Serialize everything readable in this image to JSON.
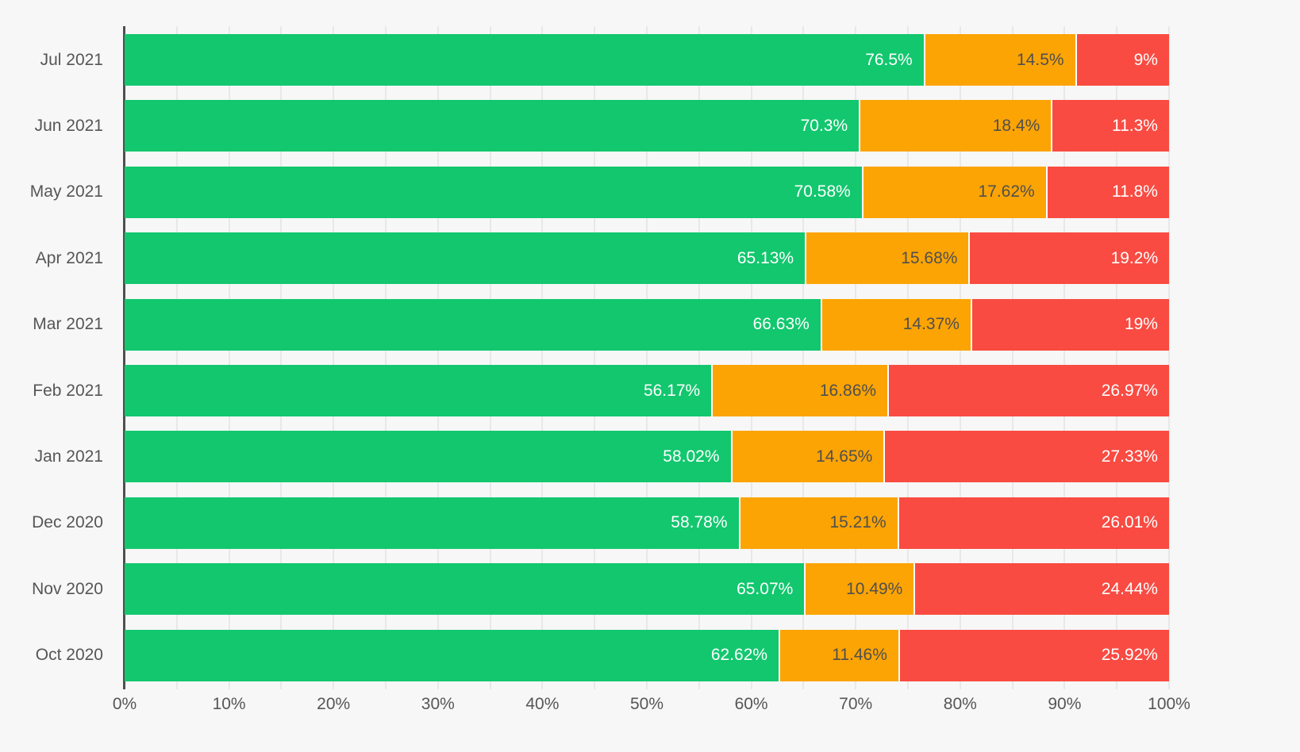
{
  "chart_data": {
    "type": "bar",
    "orientation": "horizontal",
    "stacked": true,
    "stack_total": 100,
    "title": "",
    "xlabel": "",
    "ylabel": "",
    "legend": false,
    "grid": true,
    "minor_grid_step_pct": 5,
    "xlim": [
      0,
      100
    ],
    "categories": [
      "Jul 2021",
      "Jun 2021",
      "May 2021",
      "Apr 2021",
      "Mar 2021",
      "Feb 2021",
      "Jan 2021",
      "Dec 2020",
      "Nov 2020",
      "Oct 2020"
    ],
    "series": [
      {
        "name": "green",
        "color": "#12c76e",
        "label_color": "#ffffff",
        "values": [
          76.5,
          70.3,
          70.58,
          65.13,
          66.63,
          56.17,
          58.02,
          58.78,
          65.07,
          62.62
        ],
        "labels": [
          "76.5%",
          "70.3%",
          "70.58%",
          "65.13%",
          "66.63%",
          "56.17%",
          "58.02%",
          "58.78%",
          "65.07%",
          "62.62%"
        ]
      },
      {
        "name": "orange",
        "color": "#fca404",
        "label_color": "#4f4f4f",
        "values": [
          14.5,
          18.4,
          17.62,
          15.68,
          14.37,
          16.86,
          14.65,
          15.21,
          10.49,
          11.46
        ],
        "labels": [
          "14.5%",
          "18.4%",
          "17.62%",
          "15.68%",
          "14.37%",
          "16.86%",
          "14.65%",
          "15.21%",
          "10.49%",
          "11.46%"
        ]
      },
      {
        "name": "red",
        "color": "#f94b42",
        "label_color": "#ffffff",
        "values": [
          9,
          11.3,
          11.8,
          19.2,
          19,
          26.97,
          27.33,
          26.01,
          24.44,
          25.92
        ],
        "labels": [
          "9%",
          "11.3%",
          "11.8%",
          "19.2%",
          "19%",
          "26.97%",
          "27.33%",
          "26.01%",
          "24.44%",
          "25.92%"
        ]
      }
    ],
    "x_axis": {
      "tick_labels": [
        "0%",
        "10%",
        "20%",
        "30%",
        "40%",
        "50%",
        "60%",
        "70%",
        "80%",
        "90%",
        "100%"
      ]
    },
    "colors": {
      "background": "#f7f7f7",
      "gridline": "#e8e8e8",
      "axis_line": "#4f4f4f",
      "axis_text": "#565656"
    }
  }
}
